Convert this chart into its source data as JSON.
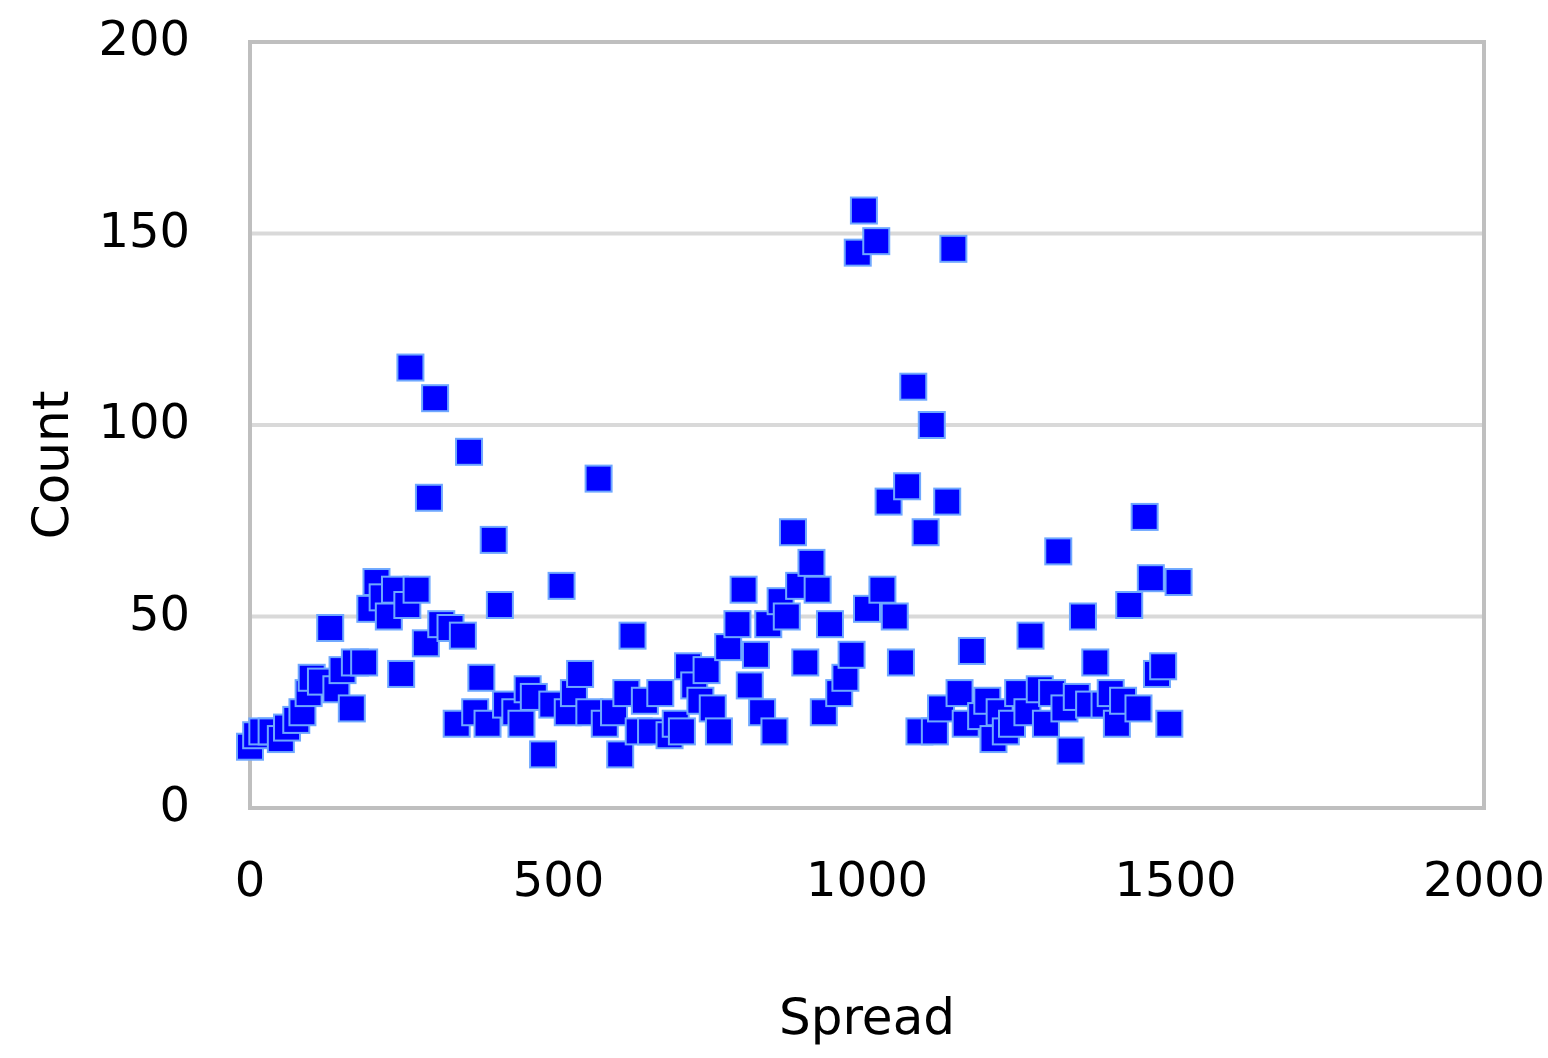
{
  "chart_data": {
    "type": "scatter",
    "xlabel": "Spread",
    "ylabel": "Count",
    "xlim": [
      0,
      2000
    ],
    "xticks": [
      0,
      500,
      1000,
      1500,
      2000
    ],
    "ylim": [
      0,
      200
    ],
    "yticks": [
      0,
      50,
      100,
      150,
      200
    ],
    "grid": "y",
    "marker": "square",
    "series": [
      {
        "color": "#0000ff",
        "x": [
          0,
          10,
          20,
          35,
          50,
          60,
          75,
          85,
          95,
          100,
          115,
          130,
          140,
          150,
          165,
          170,
          185,
          195,
          205,
          215,
          225,
          235,
          245,
          255,
          260,
          270,
          285,
          290,
          300,
          310,
          325,
          335,
          345,
          355,
          365,
          375,
          385,
          395,
          405,
          415,
          430,
          440,
          450,
          460,
          475,
          490,
          505,
          515,
          525,
          535,
          550,
          565,
          575,
          590,
          600,
          610,
          620,
          630,
          640,
          650,
          665,
          680,
          690,
          700,
          710,
          720,
          730,
          740,
          750,
          760,
          775,
          790,
          800,
          810,
          820,
          830,
          840,
          850,
          860,
          870,
          880,
          890,
          900,
          910,
          920,
          930,
          940,
          955,
          965,
          975,
          985,
          995,
          1000,
          1015,
          1025,
          1035,
          1045,
          1055,
          1065,
          1075,
          1085,
          1095,
          1105,
          1110,
          1120,
          1130,
          1140,
          1150,
          1160,
          1170,
          1185,
          1195,
          1205,
          1215,
          1225,
          1235,
          1245,
          1260,
          1265,
          1280,
          1290,
          1300,
          1310,
          1320,
          1330,
          1340,
          1350,
          1360,
          1370,
          1385,
          1395,
          1405,
          1415,
          1425,
          1440,
          1450,
          1460,
          1470,
          1480,
          1490,
          1505
        ],
        "values": [
          16,
          19,
          20,
          20,
          18,
          21,
          23,
          25,
          30,
          34,
          33,
          47,
          31,
          36,
          26,
          38,
          38,
          52,
          59,
          55,
          50,
          57,
          35,
          53,
          115,
          57,
          43,
          81,
          107,
          48,
          47,
          22,
          45,
          93,
          25,
          34,
          22,
          70,
          53,
          27,
          25,
          22,
          31,
          29,
          14,
          27,
          58,
          25,
          30,
          35,
          25,
          86,
          22,
          25,
          14,
          30,
          45,
          20,
          28,
          20,
          30,
          19,
          22,
          20,
          37,
          32,
          28,
          36,
          26,
          20,
          42,
          48,
          57,
          32,
          40,
          25,
          48,
          20,
          54,
          50,
          72,
          58,
          38,
          64,
          57,
          25,
          48,
          30,
          34,
          40,
          145,
          156,
          52,
          148,
          57,
          80,
          50,
          38,
          84,
          110,
          20,
          72,
          100,
          20,
          26,
          80,
          146,
          30,
          22,
          41,
          24,
          28,
          18,
          25,
          20,
          22,
          30,
          25,
          45,
          31,
          22,
          30,
          67,
          26,
          15,
          29,
          50,
          27,
          38,
          27,
          30,
          22,
          28,
          53,
          26,
          76,
          60,
          35,
          37,
          22,
          59
        ]
      }
    ]
  }
}
